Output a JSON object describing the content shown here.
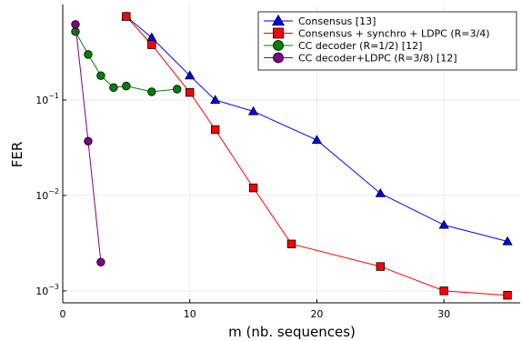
{
  "chart_data": {
    "type": "line",
    "title": "",
    "xlabel": "m (nb. sequences)",
    "ylabel": "FER",
    "xlim": [
      0,
      36
    ],
    "ylim": [
      0.00075,
      1.0
    ],
    "yscale": "log",
    "grid": true,
    "legend_position": "top-right",
    "x_ticks": [
      0,
      10,
      20,
      30
    ],
    "x_tick_labels": [
      "0",
      "10",
      "20",
      "30"
    ],
    "y_ticks": [
      0.001,
      0.01,
      0.1
    ],
    "y_tick_labels": [
      {
        "base": "10",
        "exp": "−3"
      },
      {
        "base": "10",
        "exp": "−2"
      },
      {
        "base": "10",
        "exp": "−1"
      }
    ],
    "series": [
      {
        "name": "Consensus [13]",
        "color": "#0000ff",
        "marker": "triangle",
        "x": [
          5,
          7,
          10,
          12,
          15,
          20,
          25,
          30,
          35
        ],
        "y": [
          0.75,
          0.45,
          0.18,
          0.1,
          0.076,
          0.038,
          0.0105,
          0.0049,
          0.0033
        ]
      },
      {
        "name": "Consensus + synchro + LDPC (R=3/4)",
        "color": "#ff0000",
        "marker": "square",
        "x": [
          5,
          7,
          10,
          12,
          15,
          18,
          25,
          30,
          35
        ],
        "y": [
          0.75,
          0.38,
          0.12,
          0.049,
          0.012,
          0.0031,
          0.0018,
          0.001,
          0.0009
        ]
      },
      {
        "name": "CC decoder (R=1/2) [12]",
        "color": "#008000",
        "marker": "circle",
        "x": [
          1,
          2,
          3,
          4,
          5,
          7,
          9
        ],
        "y": [
          0.52,
          0.3,
          0.18,
          0.135,
          0.14,
          0.122,
          0.13
        ]
      },
      {
        "name": "CC decoder+LDPC (R=3/8) [12]",
        "color": "#800080",
        "marker": "circle",
        "x": [
          1,
          2,
          3
        ],
        "y": [
          0.62,
          0.037,
          0.002
        ]
      }
    ]
  }
}
